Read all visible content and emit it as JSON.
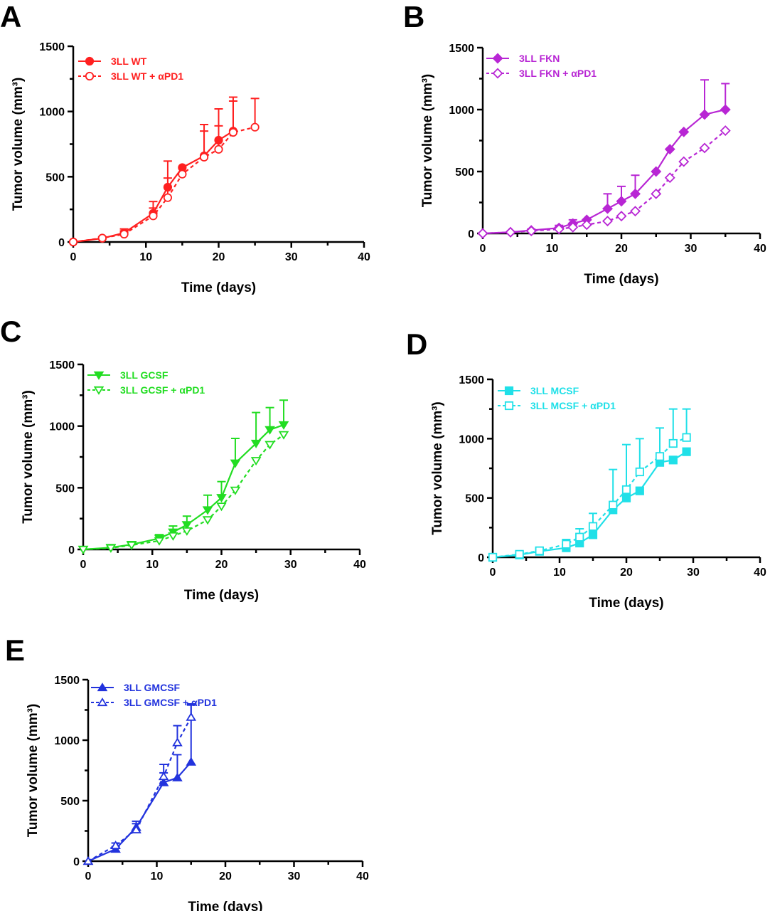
{
  "chart_data": [
    {
      "panel": "A",
      "type": "line",
      "xlabel": "Time (days)",
      "ylabel": "Tumor volume (mm³)",
      "xlim": [
        0,
        40
      ],
      "ylim": [
        0,
        1500
      ],
      "xticks": [
        0,
        10,
        20,
        30,
        40
      ],
      "yticks": [
        0,
        500,
        1000,
        1500
      ],
      "color": "#ff2020",
      "legend_position": "top-left",
      "series": [
        {
          "name": "3LL WT",
          "marker": "circle-filled",
          "dash": false,
          "x": [
            0,
            4,
            7,
            11,
            13,
            15,
            18,
            20,
            22
          ],
          "y": [
            0,
            28,
            70,
            220,
            420,
            570,
            660,
            780,
            850
          ],
          "err": [
            0,
            10,
            30,
            90,
            200,
            0,
            240,
            240,
            260
          ]
        },
        {
          "name": "3LL WT + αPD1",
          "marker": "circle-open",
          "dash": true,
          "x": [
            0,
            4,
            7,
            11,
            13,
            15,
            18,
            20,
            22,
            25
          ],
          "y": [
            0,
            30,
            60,
            200,
            340,
            520,
            650,
            710,
            840,
            880
          ],
          "err": [
            0,
            10,
            25,
            60,
            150,
            0,
            200,
            180,
            240,
            220
          ]
        }
      ]
    },
    {
      "panel": "B",
      "type": "line",
      "xlabel": "Time (days)",
      "ylabel": "Tumor volume (mm³)",
      "xlim": [
        0,
        40
      ],
      "ylim": [
        0,
        1500
      ],
      "xticks": [
        0,
        10,
        20,
        30,
        40
      ],
      "yticks": [
        0,
        500,
        1000,
        1500
      ],
      "color": "#b826d4",
      "legend_position": "top-left",
      "series": [
        {
          "name": "3LL FKN",
          "marker": "diamond-filled",
          "dash": false,
          "x": [
            0,
            4,
            7,
            11,
            13,
            15,
            18,
            20,
            22,
            25,
            27,
            29,
            32,
            35
          ],
          "y": [
            0,
            10,
            25,
            45,
            80,
            110,
            200,
            260,
            320,
            500,
            680,
            820,
            960,
            1000
          ],
          "err": [
            0,
            5,
            10,
            20,
            30,
            0,
            120,
            120,
            150,
            0,
            0,
            0,
            280,
            210
          ]
        },
        {
          "name": "3LL FKN + αPD1",
          "marker": "diamond-open",
          "dash": true,
          "x": [
            0,
            4,
            7,
            11,
            13,
            15,
            18,
            20,
            22,
            25,
            27,
            29,
            32,
            35
          ],
          "y": [
            0,
            10,
            20,
            35,
            50,
            70,
            100,
            140,
            180,
            320,
            450,
            580,
            690,
            830
          ],
          "err": [
            0,
            5,
            10,
            15,
            20,
            0,
            0,
            0,
            0,
            0,
            0,
            0,
            0,
            0
          ]
        }
      ]
    },
    {
      "panel": "C",
      "type": "line",
      "xlabel": "Time (days)",
      "ylabel": "Tumor volume (mm³)",
      "xlim": [
        0,
        40
      ],
      "ylim": [
        0,
        1500
      ],
      "xticks": [
        0,
        10,
        20,
        30,
        40
      ],
      "yticks": [
        0,
        500,
        1000,
        1500
      ],
      "color": "#22dd22",
      "legend_position": "top-left",
      "series": [
        {
          "name": "3LL GCSF",
          "marker": "triangle-down-filled",
          "dash": false,
          "x": [
            0,
            4,
            7,
            11,
            13,
            15,
            18,
            20,
            22,
            25,
            27,
            29
          ],
          "y": [
            0,
            15,
            40,
            90,
            140,
            200,
            320,
            420,
            700,
            860,
            970,
            1010
          ],
          "err": [
            0,
            5,
            15,
            30,
            50,
            70,
            120,
            130,
            200,
            250,
            180,
            200
          ]
        },
        {
          "name": "3LL GCSF + αPD1",
          "marker": "triangle-down-open",
          "dash": true,
          "x": [
            0,
            4,
            7,
            11,
            13,
            15,
            18,
            20,
            22,
            25,
            27,
            29
          ],
          "y": [
            0,
            12,
            35,
            70,
            110,
            150,
            240,
            350,
            480,
            720,
            850,
            930
          ],
          "err": [
            0,
            0,
            0,
            0,
            0,
            0,
            0,
            0,
            0,
            0,
            0,
            0
          ]
        }
      ]
    },
    {
      "panel": "D",
      "type": "line",
      "xlabel": "Time (days)",
      "ylabel": "Tumor volume (mm³)",
      "xlim": [
        0,
        40
      ],
      "ylim": [
        0,
        1500
      ],
      "xticks": [
        0,
        10,
        20,
        30,
        40
      ],
      "yticks": [
        0,
        500,
        1000,
        1500
      ],
      "color": "#20e0e8",
      "legend_position": "top-left",
      "series": [
        {
          "name": "3LL MCSF",
          "marker": "square-filled",
          "dash": false,
          "x": [
            0,
            4,
            7,
            11,
            13,
            15,
            18,
            20,
            22,
            25,
            27,
            29
          ],
          "y": [
            0,
            20,
            50,
            80,
            120,
            190,
            400,
            500,
            560,
            800,
            820,
            890
          ],
          "err": [
            0,
            0,
            0,
            0,
            0,
            0,
            0,
            0,
            0,
            0,
            0,
            0
          ]
        },
        {
          "name": "3LL MCSF + αPD1",
          "marker": "square-open",
          "dash": true,
          "x": [
            0,
            4,
            7,
            11,
            13,
            15,
            18,
            20,
            22,
            25,
            27,
            29
          ],
          "y": [
            0,
            25,
            55,
            110,
            170,
            260,
            440,
            570,
            720,
            850,
            960,
            1010
          ],
          "err": [
            0,
            10,
            20,
            40,
            70,
            110,
            300,
            380,
            280,
            240,
            290,
            240
          ]
        }
      ]
    },
    {
      "panel": "E",
      "type": "line",
      "xlabel": "Time (days)",
      "ylabel": "Tumor volume (mm³)",
      "xlim": [
        0,
        40
      ],
      "ylim": [
        0,
        1500
      ],
      "xticks": [
        0,
        10,
        20,
        30,
        40
      ],
      "yticks": [
        0,
        500,
        1000,
        1500
      ],
      "color": "#2233dd",
      "legend_position": "top-left",
      "series": [
        {
          "name": "3LL GMCSF",
          "marker": "triangle-up-filled",
          "dash": false,
          "x": [
            0,
            4,
            7,
            11,
            13,
            15
          ],
          "y": [
            0,
            100,
            280,
            650,
            690,
            820
          ],
          "err": [
            0,
            20,
            50,
            80,
            190,
            480
          ]
        },
        {
          "name": "3LL GMCSF + αPD1",
          "marker": "triangle-up-open",
          "dash": true,
          "x": [
            0,
            4,
            7,
            11,
            13,
            15
          ],
          "y": [
            0,
            130,
            260,
            700,
            980,
            1190
          ],
          "err": [
            0,
            20,
            50,
            100,
            140,
            100
          ]
        }
      ]
    }
  ]
}
